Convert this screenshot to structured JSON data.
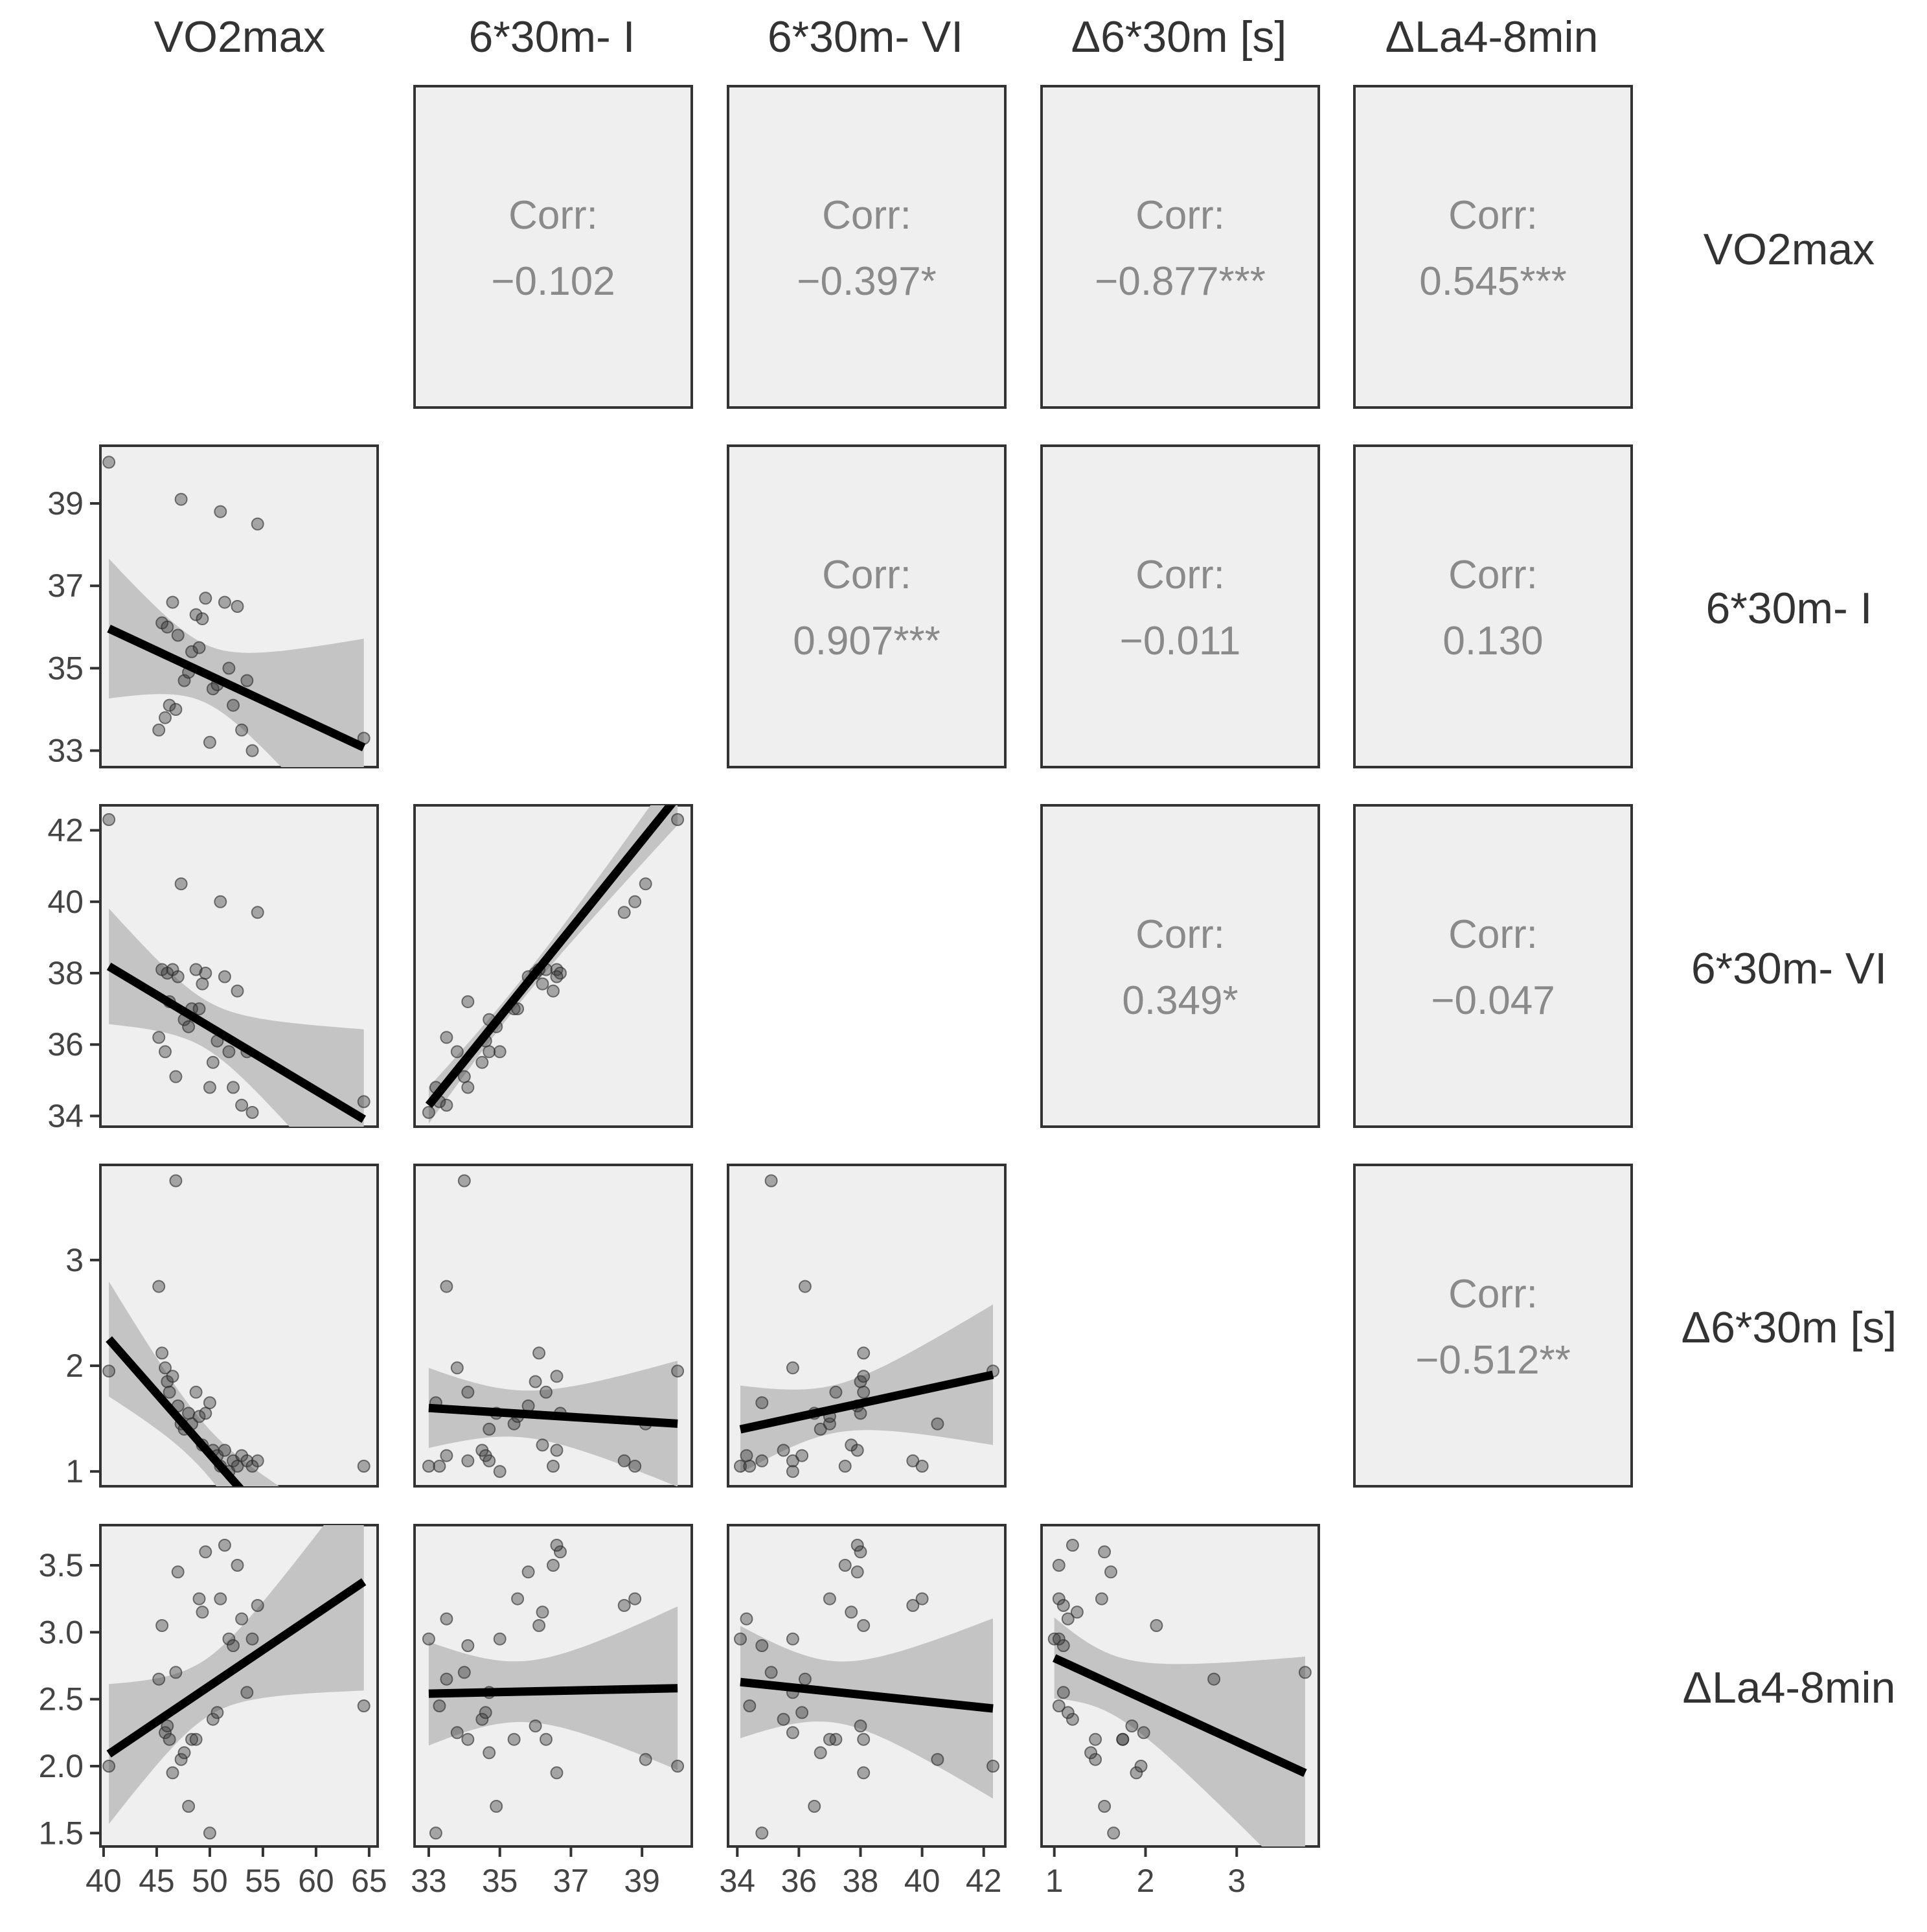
{
  "chart_data": {
    "type": "scatter",
    "title": "",
    "layout": "pairs-matrix",
    "variables": [
      {
        "key": "vo2",
        "label": "VO2max",
        "range": [
          39.7,
          65.8
        ],
        "ticks": [
          40,
          45,
          50,
          55,
          60,
          65
        ],
        "tick_labels": [
          "40",
          "45",
          "50",
          "55",
          "60",
          "65"
        ],
        "y_range": [
          32.6,
          40.4
        ],
        "y_ticks": [
          33,
          35,
          37,
          39
        ],
        "y_tick_labels": [
          "33",
          "35",
          "37",
          "39"
        ]
      },
      {
        "key": "i",
        "label": "6*30m- I",
        "range": [
          32.6,
          40.4
        ],
        "ticks": [
          33,
          35,
          37,
          39
        ],
        "tick_labels": [
          "33",
          "35",
          "37",
          "39"
        ]
      },
      {
        "key": "vi",
        "label": "6*30m- VI",
        "range": [
          33.7,
          42.7
        ],
        "ticks": [
          34,
          36,
          38,
          40,
          42
        ],
        "tick_labels": [
          "34",
          "36",
          "38",
          "40",
          "42"
        ]
      },
      {
        "key": "d30",
        "label": "Δ6*30m [s]",
        "range": [
          0.86,
          3.9
        ],
        "ticks": [
          1,
          2,
          3
        ],
        "tick_labels": [
          "1",
          "2",
          "3"
        ]
      },
      {
        "key": "la",
        "label": "ΔLa4-8min",
        "range": [
          1.4,
          3.8
        ],
        "ticks": [
          1.5,
          2.0,
          2.5,
          3.0,
          3.5
        ],
        "tick_labels": [
          "1.5",
          "2.0",
          "2.5",
          "3.0",
          "3.5"
        ]
      }
    ],
    "correlations": [
      {
        "row": 0,
        "col": 1,
        "label": "Corr:",
        "value": "−0.102"
      },
      {
        "row": 0,
        "col": 2,
        "label": "Corr:",
        "value": "−0.397*"
      },
      {
        "row": 0,
        "col": 3,
        "label": "Corr:",
        "value": "−0.877***"
      },
      {
        "row": 0,
        "col": 4,
        "label": "Corr:",
        "value": "0.545***"
      },
      {
        "row": 1,
        "col": 2,
        "label": "Corr:",
        "value": "0.907***"
      },
      {
        "row": 1,
        "col": 3,
        "label": "Corr:",
        "value": "−0.011"
      },
      {
        "row": 1,
        "col": 4,
        "label": "Corr:",
        "value": "0.130"
      },
      {
        "row": 2,
        "col": 3,
        "label": "Corr:",
        "value": "0.349*"
      },
      {
        "row": 2,
        "col": 4,
        "label": "Corr:",
        "value": "−0.047"
      },
      {
        "row": 3,
        "col": 4,
        "label": "Corr:",
        "value": "−0.512**"
      }
    ],
    "points": {
      "vo2": [
        40.5,
        45.2,
        45.5,
        45.8,
        46.0,
        46.2,
        46.5,
        46.8,
        47.0,
        47.3,
        47.6,
        48.0,
        48.3,
        48.7,
        49.0,
        49.3,
        49.6,
        50.0,
        50.3,
        50.7,
        51.0,
        51.4,
        51.8,
        52.2,
        52.6,
        53.0,
        53.5,
        54.0,
        54.5,
        64.5
      ],
      "i": [
        40.0,
        33.5,
        36.1,
        33.8,
        36.0,
        34.1,
        36.6,
        34.0,
        35.8,
        39.1,
        34.7,
        34.9,
        35.4,
        36.3,
        35.5,
        36.2,
        36.7,
        33.2,
        34.5,
        34.6,
        38.8,
        36.6,
        35.0,
        34.1,
        36.5,
        33.5,
        34.7,
        33.0,
        38.5,
        33.3
      ],
      "vi": [
        42.3,
        36.2,
        38.1,
        35.8,
        38.0,
        37.2,
        38.1,
        35.1,
        37.9,
        40.5,
        36.7,
        36.5,
        37.0,
        38.1,
        37.0,
        37.7,
        38.0,
        34.8,
        35.5,
        36.1,
        40.0,
        37.9,
        35.8,
        34.8,
        37.5,
        34.3,
        35.8,
        34.1,
        39.7,
        34.4
      ],
      "d30": [
        1.95,
        2.75,
        2.12,
        1.98,
        1.85,
        1.75,
        1.9,
        3.75,
        1.62,
        1.45,
        1.4,
        1.55,
        1.45,
        1.75,
        1.52,
        1.25,
        1.55,
        1.65,
        1.2,
        1.15,
        1.05,
        1.2,
        1.0,
        1.1,
        1.05,
        1.15,
        1.1,
        1.05,
        1.1,
        1.05
      ],
      "la": [
        2.0,
        2.65,
        3.05,
        2.25,
        2.3,
        2.2,
        1.95,
        2.7,
        3.45,
        2.05,
        2.1,
        1.7,
        2.2,
        2.2,
        3.25,
        3.15,
        3.6,
        1.5,
        2.35,
        2.4,
        3.25,
        3.65,
        2.95,
        2.9,
        3.5,
        3.1,
        2.55,
        2.95,
        3.2,
        2.45
      ]
    },
    "regression_lines": [
      {
        "x": "vo2",
        "y": "i",
        "intercept": 40.83,
        "slope": -0.1202
      },
      {
        "x": "vo2",
        "y": "vi",
        "intercept": 45.42,
        "slope": -0.1785
      },
      {
        "x": "i",
        "y": "vi",
        "intercept": -6.49,
        "slope": 1.236
      },
      {
        "x": "vo2",
        "y": "d30",
        "intercept": 6.89,
        "slope": -0.1145
      },
      {
        "x": "i",
        "y": "d30",
        "intercept": 2.3,
        "slope": -0.0212
      },
      {
        "x": "vi",
        "y": "d30",
        "intercept": -0.75,
        "slope": 0.063
      },
      {
        "x": "vo2",
        "y": "la",
        "intercept": -0.08,
        "slope": 0.0536
      },
      {
        "x": "i",
        "y": "la",
        "intercept": 2.35,
        "slope": 0.0058
      },
      {
        "x": "vi",
        "y": "la",
        "intercept": 3.45,
        "slope": -0.0241
      },
      {
        "x": "d30",
        "y": "la",
        "intercept": 3.12,
        "slope": -0.3125
      }
    ],
    "xlabel": "",
    "ylabel": "",
    "grid": false
  }
}
